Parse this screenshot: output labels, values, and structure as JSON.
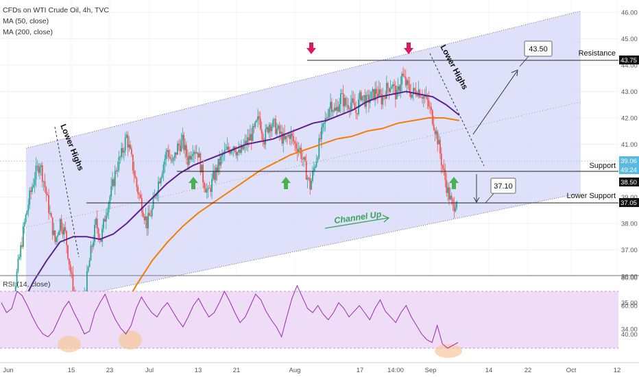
{
  "header": {
    "title": "CFDs on WTI Crude Oil, 4h, TVC",
    "ma50_label": "MA (50, close)",
    "ma200_label": "MA (200, close)",
    "rsi_label": "RSI (14, close)"
  },
  "chart_data": {
    "type": "candlestick",
    "symbol": "CFDs on WTI Crude Oil",
    "timeframe": "4h",
    "price_axis": {
      "ticks": [
        "34.00",
        "35.00",
        "36.00",
        "37.00",
        "38.00",
        "39.00",
        "40.00",
        "41.00",
        "42.00",
        "43.00",
        "44.00",
        "45.00",
        "46.00"
      ],
      "range": [
        33.8,
        46.3
      ]
    },
    "time_axis": {
      "ticks": [
        "Jun",
        "15",
        "23",
        "Jul",
        "13",
        "21",
        "Aug",
        "17",
        "14:00",
        "Sep",
        "14",
        "22",
        "Oct",
        "12"
      ]
    },
    "rsi_axis": {
      "ticks": [
        "40.00",
        "60.00",
        "80.00"
      ],
      "range": [
        28,
        80
      ],
      "band": [
        30,
        70
      ]
    },
    "price_series_close": [
      33.7,
      34.5,
      35.5,
      36.7,
      38.0,
      39.0,
      39.8,
      40.3,
      39.4,
      38.3,
      37.3,
      38.1,
      37.6,
      36.2,
      34.8,
      34.4,
      35.6,
      36.9,
      38.0,
      37.4,
      38.5,
      39.2,
      40.1,
      40.6,
      41.3,
      40.4,
      39.4,
      38.7,
      38.0,
      38.5,
      39.4,
      40.1,
      40.8,
      40.2,
      40.9,
      41.1,
      40.4,
      40.9,
      40.7,
      39.7,
      39.1,
      39.7,
      40.2,
      40.6,
      40.8,
      41.0,
      40.6,
      40.9,
      41.2,
      41.5,
      42.0,
      41.2,
      41.8,
      41.7,
      41.4,
      41.1,
      41.4,
      41.0,
      40.8,
      40.1,
      39.4,
      40.3,
      41.2,
      41.9,
      42.6,
      42.2,
      42.8,
      42.5,
      42.6,
      42.2,
      42.9,
      42.6,
      42.8,
      43.0,
      42.7,
      43.1,
      43.3,
      42.8,
      43.6,
      43.2,
      42.9,
      43.1,
      42.9,
      42.6,
      42.0,
      41.2,
      40.1,
      39.2,
      38.6,
      39.1
    ],
    "ma50": {
      "name": "MA (50, close)",
      "color": "#6a1b9a",
      "values": [
        33.9,
        34.8,
        35.8,
        36.6,
        37.3,
        37.5,
        37.5,
        37.4,
        37.6,
        38.0,
        38.5,
        39.0,
        39.5,
        39.9,
        40.2,
        40.4,
        40.6,
        40.8,
        41.0,
        41.1,
        41.2,
        41.4,
        41.6,
        41.8,
        41.9,
        42.1,
        42.3,
        42.6,
        42.8,
        42.9,
        43.0,
        42.9,
        42.8,
        42.5,
        42.1
      ]
    },
    "ma200": {
      "name": "MA (200, close)",
      "color": "#f57c00",
      "values": [
        33.8,
        34.7,
        35.7,
        36.6,
        37.3,
        37.9,
        38.4,
        38.8,
        39.2,
        39.6,
        40.0,
        40.3,
        40.6,
        40.8,
        41.0,
        41.2,
        41.3,
        41.5,
        41.6,
        41.8,
        41.9,
        42.0,
        42.0,
        41.9
      ]
    },
    "channel": {
      "name": "Channel Up",
      "upper": [
        [
          0.04,
          40.85
        ],
        [
          0.91,
          46.05
        ]
      ],
      "lower": [
        [
          0.04,
          34.85
        ],
        [
          0.91,
          39.15
        ]
      ],
      "mid": [
        [
          0.04,
          37.85
        ],
        [
          0.91,
          42.6
        ]
      ]
    },
    "levels": [
      {
        "label": "Resistance",
        "price_label": "43.75",
        "value": 43.75
      },
      {
        "label": "Support",
        "price_label": "38.50",
        "value": 38.5
      },
      {
        "label": "Lower Support",
        "price_label": "37.05",
        "value": 37.05
      }
    ],
    "current_price": {
      "value_label": "39.06",
      "countdown": "49:24",
      "value": 39.06
    },
    "targets": [
      {
        "label": "43.50",
        "value": 43.5
      },
      {
        "label": "37.10",
        "value": 37.1
      }
    ],
    "annotations": [
      {
        "text": "Lower Highs",
        "position": "left"
      },
      {
        "text": "Lower Highs",
        "position": "right"
      },
      {
        "text": "Channel Up",
        "color": "#4caf50"
      }
    ],
    "markers": {
      "down_arrows": 2,
      "up_arrows": 3
    },
    "rsi": {
      "name": "RSI (14, close)",
      "color": "#9c27b0",
      "values": [
        62,
        55,
        58,
        70,
        67,
        60,
        52,
        45,
        40,
        38,
        42,
        50,
        58,
        63,
        55,
        48,
        40,
        42,
        55,
        62,
        68,
        58,
        50,
        44,
        40,
        46,
        58,
        66,
        60,
        55,
        52,
        58,
        62,
        56,
        50,
        45,
        52,
        60,
        65,
        58,
        52,
        55,
        62,
        70,
        63,
        55,
        48,
        52,
        60,
        68,
        64,
        56,
        50,
        45,
        38,
        52,
        65,
        74,
        66,
        58,
        55,
        60,
        54,
        50,
        55,
        62,
        58,
        52,
        56,
        60,
        55,
        50,
        58,
        64,
        56,
        52,
        48,
        55,
        60,
        52,
        46,
        40,
        36,
        34,
        46,
        33,
        30,
        32,
        34
      ]
    },
    "colors": {
      "candle_up": "#26a69a",
      "candle_down": "#ef5350",
      "channel_fill": "#d7d9f7",
      "rsi_fill": "#efdcf7",
      "arrow_up": "#4caf50",
      "arrow_down": "#d81b60"
    }
  }
}
